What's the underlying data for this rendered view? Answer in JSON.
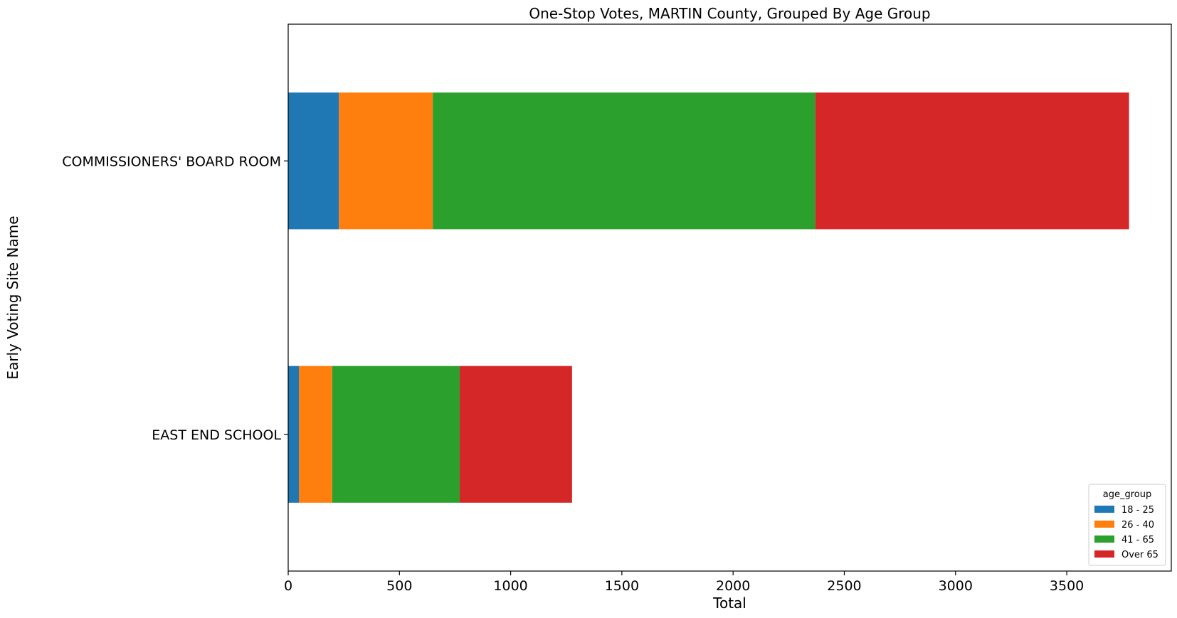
{
  "chart_data": {
    "type": "bar",
    "orientation": "horizontal",
    "stacked": true,
    "title": "One-Stop Votes, MARTIN County, Grouped By Age Group",
    "xlabel": "Total",
    "ylabel": "Early Voting Site Name",
    "categories": [
      "COMMISSIONERS' BOARD ROOM",
      "EAST END SCHOOL"
    ],
    "series": [
      {
        "name": "18 - 25",
        "color": "#1f77b4",
        "values": [
          228,
          48
        ]
      },
      {
        "name": "26 - 40",
        "color": "#ff7f0e",
        "values": [
          422,
          150
        ]
      },
      {
        "name": "41 - 65",
        "color": "#2ca02c",
        "values": [
          1720,
          573
        ]
      },
      {
        "name": "Over 65",
        "color": "#d62728",
        "values": [
          1410,
          505
        ]
      }
    ],
    "xlim": [
      0,
      3970
    ],
    "xticks": [
      0,
      500,
      1000,
      1500,
      2000,
      2500,
      3000,
      3500
    ],
    "grid": false,
    "legend": {
      "title": "age_group",
      "placement": "lower right"
    }
  }
}
